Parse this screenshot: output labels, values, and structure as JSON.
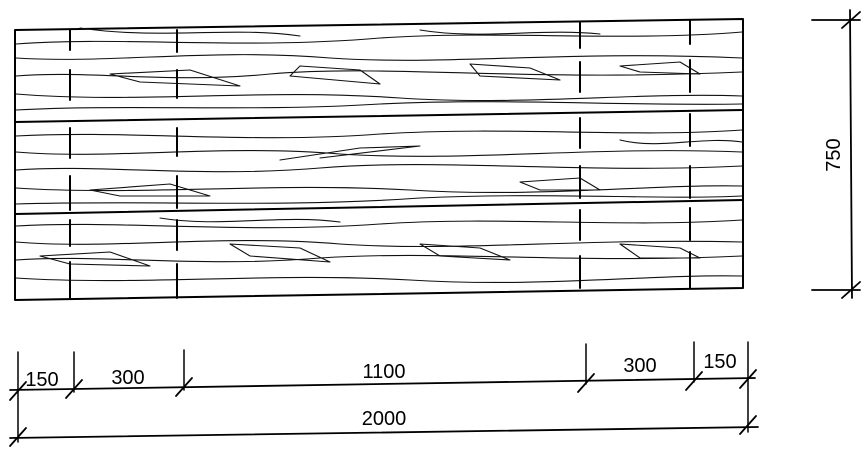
{
  "drawing": {
    "dimensions": {
      "overall_width": "2000",
      "height": "750",
      "segments": [
        "150",
        "300",
        "1100",
        "300",
        "150"
      ]
    },
    "board_count": 3,
    "line_color": "#000000",
    "background": "#ffffff"
  }
}
